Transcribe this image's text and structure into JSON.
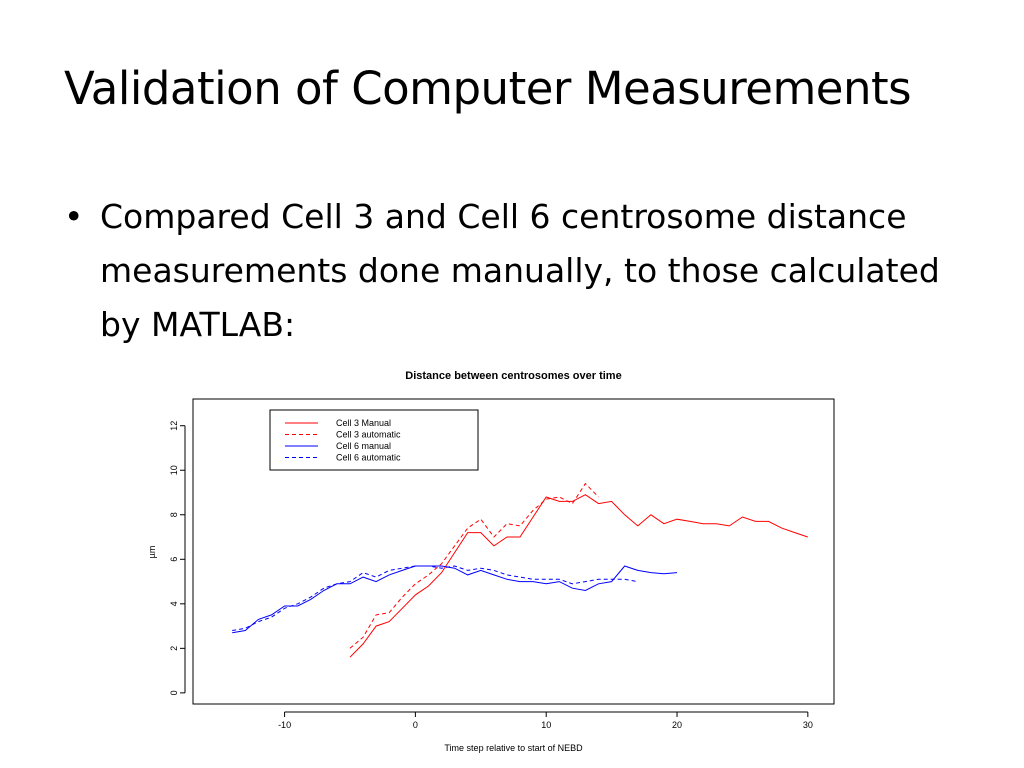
{
  "slide": {
    "title": "Validation of Computer Measurements",
    "bullets": [
      {
        "marker": "•",
        "text": "Compared Cell 3 and Cell 6 centrosome distance measurements done manually, to those calculated by MATLAB:"
      }
    ]
  },
  "chart_data": {
    "type": "line",
    "title": "Distance between centrosomes over time",
    "xlabel": "Time step relative to start of NEBD",
    "ylabel": "µm",
    "xlim": [
      -17,
      32
    ],
    "ylim": [
      -0.5,
      13.2
    ],
    "xticks": [
      -10,
      0,
      10,
      20,
      30
    ],
    "yticks": [
      0,
      2,
      4,
      6,
      8,
      10,
      12
    ],
    "grid": false,
    "legend_position": "top-left",
    "series": [
      {
        "name": "Cell 3 Manual",
        "color": "#ff0000",
        "dash": "solid",
        "x": [
          -5,
          -4,
          -3,
          -2,
          -1,
          0,
          1,
          2,
          3,
          4,
          5,
          6,
          7,
          8,
          9,
          10,
          11,
          12,
          13,
          14,
          15,
          16,
          17,
          18,
          19,
          20,
          21,
          22,
          23,
          24,
          25,
          26,
          27,
          28,
          29,
          30
        ],
        "y": [
          1.6,
          2.2,
          3.0,
          3.2,
          3.8,
          4.4,
          4.8,
          5.4,
          6.3,
          7.2,
          7.2,
          6.6,
          7.0,
          7.0,
          7.9,
          8.8,
          8.6,
          8.6,
          8.9,
          8.5,
          8.6,
          8.0,
          7.5,
          8.0,
          7.6,
          7.8,
          7.7,
          7.6,
          7.6,
          7.5,
          7.9,
          7.7,
          7.7,
          7.4,
          7.2,
          7.0
        ]
      },
      {
        "name": "Cell 3 automatic",
        "color": "#ff0000",
        "dash": "dashed",
        "x": [
          -5,
          -4,
          -3,
          -2,
          -1,
          0,
          1,
          2,
          3,
          4,
          5,
          6,
          7,
          8,
          9,
          10,
          11,
          12,
          13,
          14
        ],
        "y": [
          2.0,
          2.5,
          3.5,
          3.6,
          4.3,
          4.9,
          5.3,
          5.8,
          6.6,
          7.4,
          7.8,
          7.0,
          7.6,
          7.5,
          8.2,
          8.7,
          8.8,
          8.5,
          9.4,
          8.8
        ]
      },
      {
        "name": "Cell 6 manual",
        "color": "#0000ff",
        "dash": "solid",
        "x": [
          -14,
          -13,
          -12,
          -11,
          -10,
          -9,
          -8,
          -7,
          -6,
          -5,
          -4,
          -3,
          -2,
          -1,
          0,
          1,
          2,
          3,
          4,
          5,
          6,
          7,
          8,
          9,
          10,
          11,
          12,
          13,
          14,
          15,
          16,
          17,
          18,
          19,
          20
        ],
        "y": [
          2.7,
          2.8,
          3.3,
          3.5,
          3.9,
          3.9,
          4.2,
          4.6,
          4.9,
          4.9,
          5.2,
          5.0,
          5.3,
          5.5,
          5.7,
          5.7,
          5.7,
          5.6,
          5.3,
          5.5,
          5.3,
          5.1,
          5.0,
          5.0,
          4.9,
          5.0,
          4.7,
          4.6,
          4.9,
          5.0,
          5.7,
          5.5,
          5.4,
          5.35,
          5.4
        ]
      },
      {
        "name": "Cell 6 automatic",
        "color": "#0000ff",
        "dash": "dashed",
        "x": [
          -14,
          -13,
          -12,
          -11,
          -10,
          -9,
          -8,
          -7,
          -6,
          -5,
          -4,
          -3,
          -2,
          -1,
          0,
          1,
          2,
          3,
          4,
          5,
          6,
          7,
          8,
          9,
          10,
          11,
          12,
          13,
          14,
          15,
          16,
          17
        ],
        "y": [
          2.8,
          2.9,
          3.2,
          3.4,
          3.8,
          4.0,
          4.3,
          4.7,
          4.9,
          5.0,
          5.4,
          5.2,
          5.5,
          5.6,
          5.7,
          5.7,
          5.6,
          5.7,
          5.5,
          5.6,
          5.5,
          5.3,
          5.2,
          5.1,
          5.1,
          5.1,
          4.9,
          5.0,
          5.1,
          5.1,
          5.1,
          5.0
        ]
      }
    ]
  }
}
